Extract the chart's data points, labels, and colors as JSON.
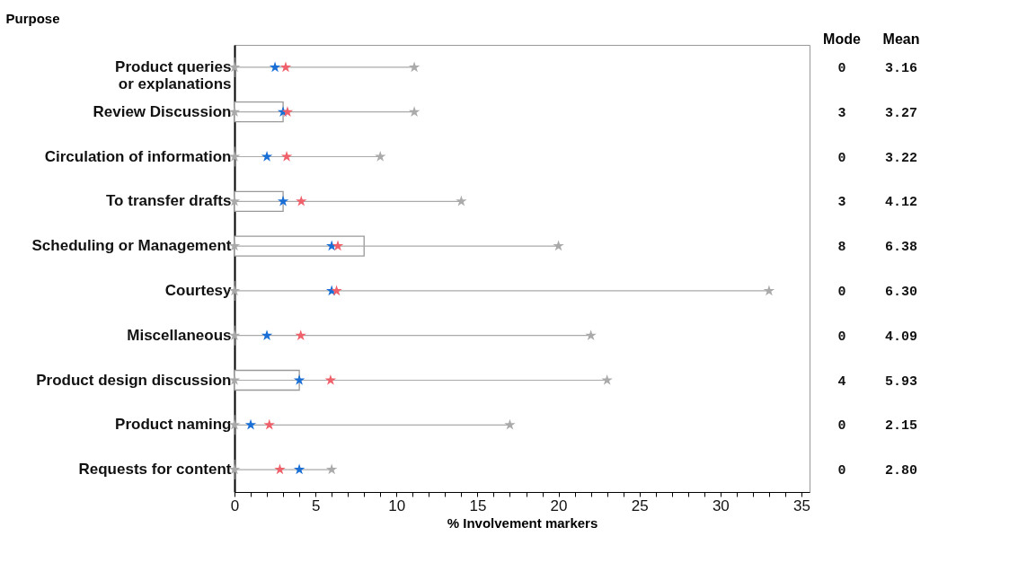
{
  "chart_data": {
    "type": "scatter",
    "orientation": "horizontal",
    "marker": "star",
    "annotations": [
      "Mode",
      "Mean"
    ],
    "ylabel": "Purpose",
    "xlabel": "% Involvement markers",
    "categories": [
      "Product queries\nor explanations",
      "Review Discussion",
      "Circulation of information",
      "To transfer drafts",
      "Scheduling or Management",
      "Courtesy",
      "Miscellaneous",
      "Product design discussion",
      "Product naming",
      "Requests for content"
    ],
    "xlim": [
      0,
      35.5
    ],
    "xticks": [
      0,
      {
        "value": 1,
        "label": null
      },
      {
        "value": 2,
        "label": null
      },
      {
        "value": 3,
        "label": null
      },
      {
        "value": 4,
        "label": null
      },
      5,
      {
        "value": 6,
        "label": null
      },
      {
        "value": 7,
        "label": null
      },
      {
        "value": 8,
        "label": null
      },
      {
        "value": 9,
        "label": null
      },
      10,
      {
        "value": 11,
        "label": null
      },
      {
        "value": 12,
        "label": null
      },
      {
        "value": 13,
        "label": null
      },
      {
        "value": 14,
        "label": null
      },
      15,
      {
        "value": 16,
        "label": null
      },
      {
        "value": 17,
        "label": null
      },
      {
        "value": 18,
        "label": null
      },
      {
        "value": 19,
        "label": null
      },
      20,
      {
        "value": 21,
        "label": null
      },
      {
        "value": 22,
        "label": null
      },
      {
        "value": 23,
        "label": null
      },
      {
        "value": 24,
        "label": null
      },
      25,
      {
        "value": 26,
        "label": null
      },
      {
        "value": 27,
        "label": null
      },
      {
        "value": 28,
        "label": null
      },
      {
        "value": 29,
        "label": null
      },
      30,
      {
        "value": 31,
        "label": null
      },
      {
        "value": 32,
        "label": null
      },
      {
        "value": 33,
        "label": null
      },
      {
        "value": 34,
        "label": null
      },
      35
    ],
    "series": [
      {
        "type": "bar",
        "color": "#999999",
        "values": [
          0,
          3,
          0,
          3,
          8,
          0,
          0,
          4,
          0,
          0
        ],
        "value_labels": [
          "0",
          "3",
          "0",
          "3",
          "8",
          "0",
          "0",
          "4",
          "0",
          "0"
        ]
      },
      {
        "color": "#aaaaaa",
        "values": [
          0,
          0,
          0,
          0,
          0,
          0,
          0,
          0,
          0,
          0
        ]
      },
      {
        "color": "#aaaaaa",
        "values": [
          11.1,
          11.1,
          9,
          14,
          20,
          33,
          22,
          23,
          17,
          6
        ]
      },
      {
        "color": "#1a6fd6",
        "values": [
          2.5,
          3,
          2,
          3,
          6,
          6,
          2,
          4,
          1,
          4
        ]
      },
      {
        "color": "#f0606a",
        "values": [
          3.16,
          3.27,
          3.22,
          4.12,
          6.38,
          6.3,
          4.09,
          5.93,
          2.15,
          2.8
        ],
        "value_labels": [
          "3.16",
          "3.27",
          "3.22",
          "4.12",
          "6.38",
          "6.30",
          "4.09",
          "5.93",
          "2.15",
          "2.80"
        ]
      }
    ]
  }
}
